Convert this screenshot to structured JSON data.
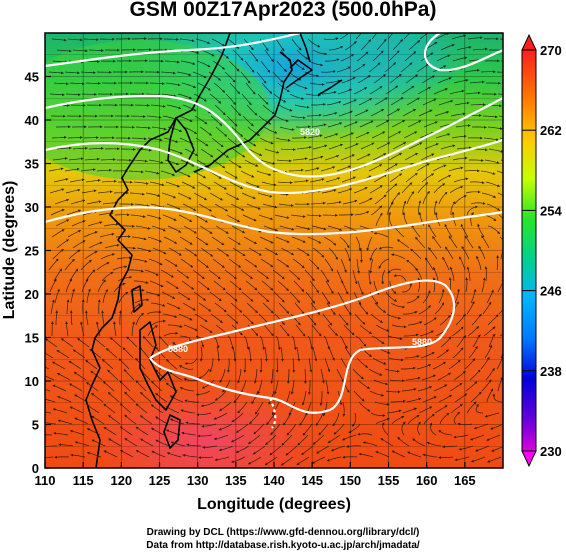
{
  "title": "GSM 00Z17Apr2023 (500.0hPa)",
  "axes": {
    "xlabel": "Longitude (degrees)",
    "ylabel": "Latitude  (degrees)",
    "xticks": [
      "110",
      "115",
      "120",
      "125",
      "130",
      "135",
      "140",
      "145",
      "150",
      "155",
      "160",
      "165"
    ],
    "yticks": [
      "0",
      "5",
      "10",
      "15",
      "20",
      "25",
      "30",
      "35",
      "40",
      "45"
    ]
  },
  "colorbar": {
    "ticks": [
      "270",
      "262",
      "254",
      "246",
      "238",
      "230"
    ],
    "min": 230,
    "max": 270
  },
  "contour_labels": [
    "5820",
    "5880",
    "5880"
  ],
  "credits": {
    "line1": "Drawing by DCL (https://www.gfd-dennou.org/library/dcl/)",
    "line2": "Data from http://database.rish.kyoto-u.ac.jp/arch/jmadata/"
  },
  "chart_data": {
    "type": "heatmap",
    "title": "GSM 00Z17Apr2023 (500.0hPa)",
    "xlabel": "Longitude (degrees)",
    "ylabel": "Latitude  (degrees)",
    "xlim": [
      110,
      170
    ],
    "ylim": [
      0,
      50
    ],
    "colorbar_range": [
      230,
      270
    ],
    "colorbar_ticks": [
      230,
      238,
      246,
      254,
      262,
      270
    ],
    "colors": [
      "#ff00ff",
      "#0000ff",
      "#00ffff",
      "#00ff00",
      "#ffff00",
      "#ff0000"
    ],
    "contour_labels": [
      "5820",
      "5880",
      "5880"
    ],
    "features": [
      "temperature shading",
      "streamlines with arrows",
      "geopotential height contours (white)",
      "coastlines"
    ]
  }
}
